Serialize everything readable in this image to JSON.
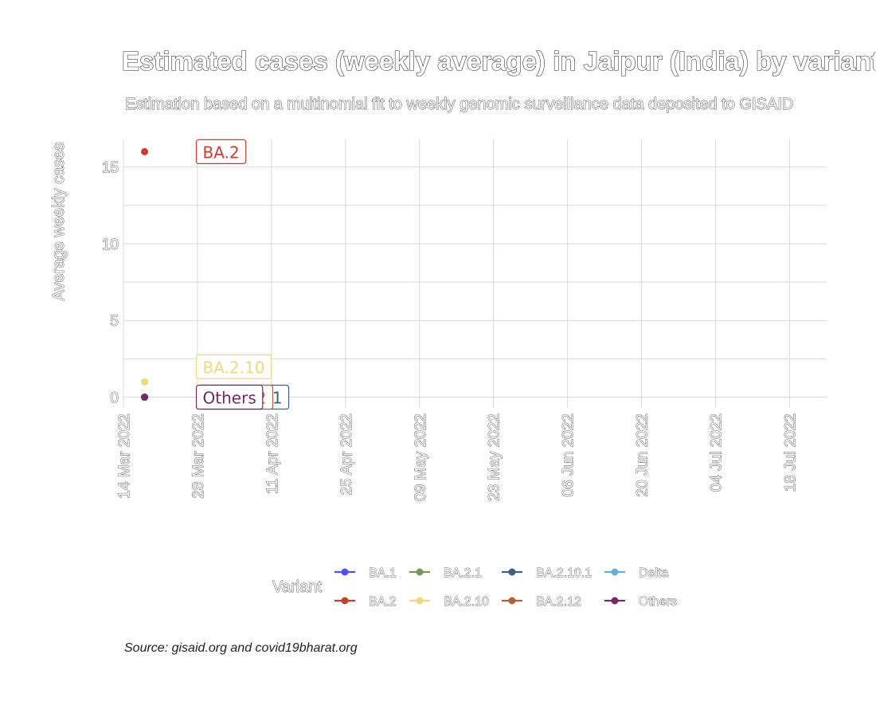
{
  "chart_data": {
    "type": "line",
    "title": "Estimated cases (weekly average) in Jaipur (India) by variant",
    "subtitle": "Estimation based on a multinomial fit to weekly genomic surveillance data deposited to GISAID",
    "ylabel": "Average weekly cases",
    "xlabel": "",
    "ylim": [
      -0.7,
      16.8
    ],
    "yticks": [
      0,
      5,
      10,
      15
    ],
    "xlim": [
      "2022-03-14",
      "2022-07-25"
    ],
    "xticks": [
      "2022-03-14",
      "2022-03-28",
      "2022-04-11",
      "2022-04-25",
      "2022-05-09",
      "2022-05-23",
      "2022-06-06",
      "2022-06-20",
      "2022-07-04",
      "2022-07-18"
    ],
    "xtick_labels": [
      "14 Mar 2022",
      "28 Mar 2022",
      "11 Apr 2022",
      "25 Apr 2022",
      "09 May 2022",
      "23 May 2022",
      "06 Jun 2022",
      "20 Jun 2022",
      "04 Jul 2022",
      "18 Jul 2022"
    ],
    "grid": true,
    "legend_title": "Variant",
    "legend_position": "bottom",
    "series": [
      {
        "name": "BA.1",
        "color": "#5050f0",
        "x": [
          "2022-03-18"
        ],
        "values": [
          0
        ]
      },
      {
        "name": "BA.2",
        "color": "#cc3b2e",
        "x": [
          "2022-03-18"
        ],
        "values": [
          16
        ],
        "label": "BA.2"
      },
      {
        "name": "BA.2.1",
        "color": "#76985a",
        "x": [
          "2022-03-18"
        ],
        "values": [
          0
        ]
      },
      {
        "name": "BA.2.10",
        "color": "#efd97a",
        "x": [
          "2022-03-18"
        ],
        "values": [
          1
        ],
        "label": "BA.2.10"
      },
      {
        "name": "BA.2.10.1",
        "color": "#3f5f80",
        "x": [
          "2022-03-18"
        ],
        "values": [
          0
        ],
        "label": "BA.2.10.1"
      },
      {
        "name": "BA.2.12",
        "color": "#b45f3c",
        "x": [
          "2022-03-18"
        ],
        "values": [
          0
        ],
        "label": "BA.2.12"
      },
      {
        "name": "Delta",
        "color": "#65aed8",
        "x": [
          "2022-03-18"
        ],
        "values": [
          0
        ]
      },
      {
        "name": "Others",
        "color": "#762a63",
        "x": [
          "2022-03-18"
        ],
        "values": [
          0
        ],
        "label": "Others"
      }
    ]
  },
  "caption": "Source: gisaid.org and covid19bharat.org"
}
